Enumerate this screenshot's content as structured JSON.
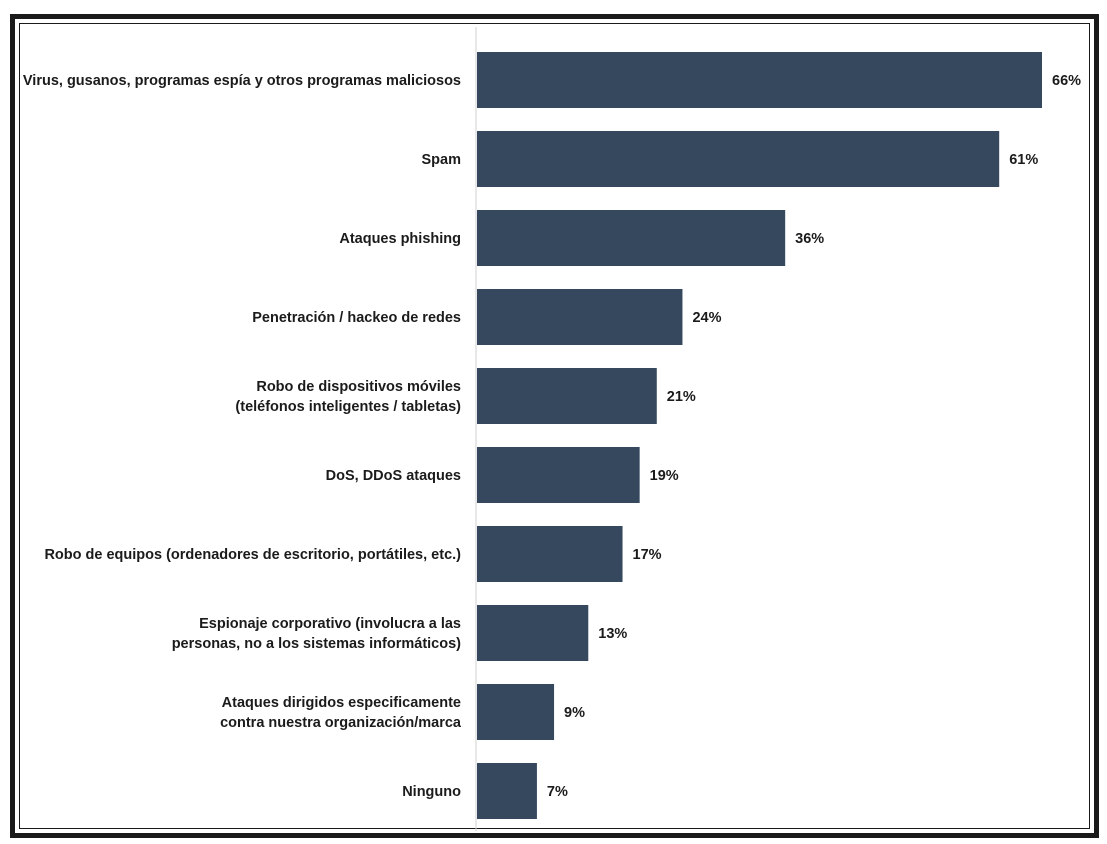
{
  "chart_data": {
    "type": "bar",
    "orientation": "horizontal",
    "categories": [
      [
        "Virus, gusanos, programas espía y otros programas maliciosos"
      ],
      [
        "Spam"
      ],
      [
        "Ataques phishing"
      ],
      [
        "Penetración / hackeo de redes"
      ],
      [
        "Robo de dispositivos móviles",
        "(teléfonos inteligentes / tabletas)"
      ],
      [
        "DoS, DDoS ataques"
      ],
      [
        "Robo de equipos (ordenadores de escritorio, portátiles, etc.)"
      ],
      [
        "Espionaje corporativo (involucra  a las",
        "personas, no a los sistemas informáticos)"
      ],
      [
        "Ataques dirigidos especificamente",
        "contra nuestra organización/marca"
      ],
      [
        "Ninguno"
      ]
    ],
    "values": [
      66,
      61,
      36,
      24,
      21,
      19,
      17,
      13,
      9,
      7
    ],
    "value_labels": [
      "66%",
      "61%",
      "36%",
      "24%",
      "21%",
      "19%",
      "17%",
      "13%",
      "9%",
      "7%"
    ],
    "xlim": [
      0,
      66
    ],
    "grid": false,
    "legend": "none",
    "bar_color": "#35485d"
  }
}
